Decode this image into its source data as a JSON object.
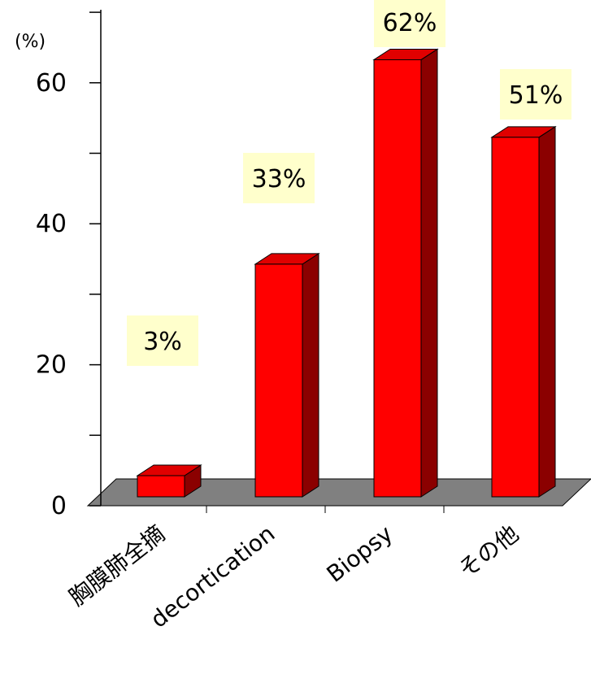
{
  "chart_data": {
    "type": "bar",
    "unit_label": "(%)",
    "categories": [
      "胸膜肺全摘",
      "decortication",
      "Biopsy",
      "その他"
    ],
    "values": [
      3,
      33,
      62,
      51
    ],
    "data_labels": [
      "3%",
      "33%",
      "62%",
      "51%"
    ],
    "yticks": [
      "0",
      "20",
      "40",
      "60"
    ],
    "ylim": [
      0,
      60
    ],
    "grid": false,
    "colors": {
      "bar_front": "#ff0000",
      "bar_top": "#e00000",
      "bar_side": "#8b0000",
      "floor": "#808080",
      "label_bg": "#ffffcc"
    }
  }
}
